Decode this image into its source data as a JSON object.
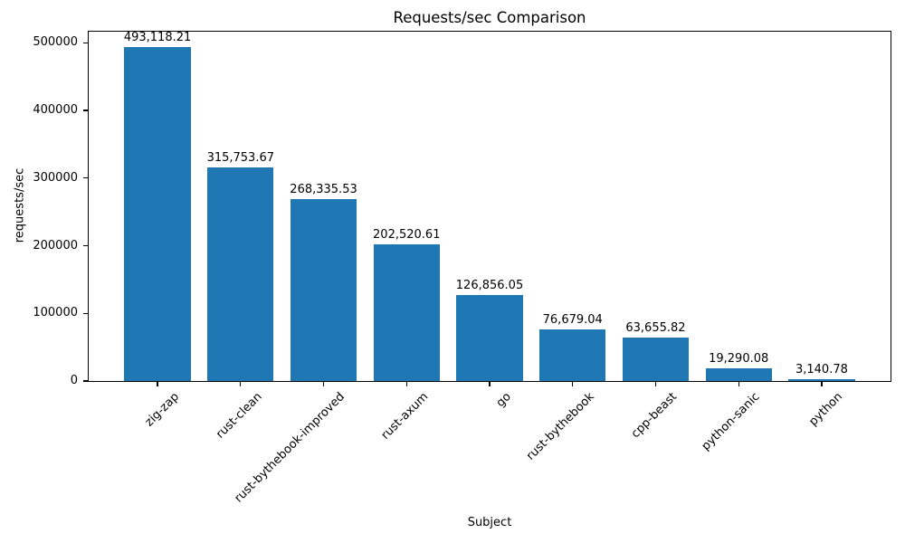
{
  "chart_data": {
    "type": "bar",
    "title": "Requests/sec Comparison",
    "xlabel": "Subject",
    "ylabel": "requests/sec",
    "categories": [
      "zig-zap",
      "rust-clean",
      "rust-bythebook-improved",
      "rust-axum",
      "go",
      "rust-bythebook",
      "cpp-beast",
      "python-sanic",
      "python"
    ],
    "values": [
      493118.21,
      315753.67,
      268335.53,
      202520.61,
      126856.05,
      76679.04,
      63655.82,
      19290.08,
      3140.78
    ],
    "value_labels": [
      "493,118.21",
      "315,753.67",
      "268,335.53",
      "202,520.61",
      "126,856.05",
      "76,679.04",
      "63,655.82",
      "19,290.08",
      "3,140.78"
    ],
    "yticks": [
      0,
      100000,
      200000,
      300000,
      400000,
      500000
    ],
    "ytick_labels": [
      "0",
      "100000",
      "200000",
      "300000",
      "400000",
      "500000"
    ],
    "ylim": [
      0,
      517774
    ],
    "xlim": [
      -0.84,
      8.84
    ],
    "bar_width_frac": 0.8,
    "bar_color": "#1f77b4",
    "grid": false,
    "legend": "none",
    "background_color": "#ffffff",
    "text_color": "#000000"
  }
}
